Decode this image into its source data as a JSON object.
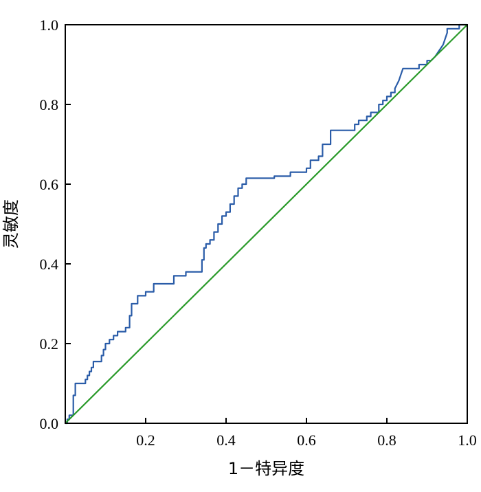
{
  "chart_data": {
    "type": "line",
    "title": "",
    "xlabel": "1－特异度",
    "ylabel": "灵敏度",
    "xlim": [
      0,
      1
    ],
    "ylim": [
      0,
      1
    ],
    "x_ticks": [
      {
        "value": 0.2,
        "label": "0.2"
      },
      {
        "value": 0.4,
        "label": "0.4"
      },
      {
        "value": 0.6,
        "label": "0.6"
      },
      {
        "value": 0.8,
        "label": "0.8"
      },
      {
        "value": 1.0,
        "label": "1.0"
      }
    ],
    "y_ticks": [
      {
        "value": 0.0,
        "label": "0.0"
      },
      {
        "value": 0.2,
        "label": "0.2"
      },
      {
        "value": 0.4,
        "label": "0.4"
      },
      {
        "value": 0.6,
        "label": "0.6"
      },
      {
        "value": 0.8,
        "label": "0.8"
      },
      {
        "value": 1.0,
        "label": "1.0"
      }
    ],
    "grid": false,
    "legend": "none",
    "series": [
      {
        "color": "#2a5ca8",
        "x": [
          0,
          0.005,
          0.005,
          0.01,
          0.01,
          0.02,
          0.02,
          0.025,
          0.025,
          0.03,
          0.03,
          0.05,
          0.05,
          0.055,
          0.055,
          0.06,
          0.06,
          0.065,
          0.065,
          0.07,
          0.07,
          0.09,
          0.09,
          0.095,
          0.095,
          0.1,
          0.1,
          0.11,
          0.11,
          0.12,
          0.12,
          0.13,
          0.13,
          0.15,
          0.15,
          0.16,
          0.16,
          0.165,
          0.165,
          0.18,
          0.18,
          0.185,
          0.185,
          0.2,
          0.2,
          0.22,
          0.22,
          0.23,
          0.23,
          0.27,
          0.27,
          0.3,
          0.3,
          0.34,
          0.34,
          0.345,
          0.345,
          0.35,
          0.35,
          0.36,
          0.36,
          0.37,
          0.37,
          0.38,
          0.38,
          0.39,
          0.39,
          0.4,
          0.4,
          0.41,
          0.41,
          0.42,
          0.42,
          0.43,
          0.43,
          0.44,
          0.44,
          0.45,
          0.45,
          0.46,
          0.52,
          0.52,
          0.56,
          0.56,
          0.6,
          0.6,
          0.61,
          0.61,
          0.63,
          0.63,
          0.64,
          0.64,
          0.66,
          0.66,
          0.72,
          0.72,
          0.73,
          0.73,
          0.75,
          0.75,
          0.76,
          0.76,
          0.78,
          0.78,
          0.79,
          0.79,
          0.8,
          0.8,
          0.81,
          0.81,
          0.82,
          0.82,
          0.83,
          0.84,
          0.86,
          0.88,
          0.88,
          0.9,
          0.9,
          0.91,
          0.92,
          0.94,
          0.95,
          0.95,
          0.98,
          0.98,
          1.0
        ],
        "y": [
          0,
          0,
          0.01,
          0.01,
          0.02,
          0.02,
          0.07,
          0.07,
          0.1,
          0.1,
          0.1,
          0.1,
          0.11,
          0.11,
          0.12,
          0.12,
          0.13,
          0.13,
          0.14,
          0.14,
          0.155,
          0.155,
          0.17,
          0.17,
          0.185,
          0.185,
          0.2,
          0.2,
          0.21,
          0.21,
          0.22,
          0.22,
          0.23,
          0.23,
          0.24,
          0.24,
          0.27,
          0.27,
          0.3,
          0.3,
          0.32,
          0.32,
          0.32,
          0.32,
          0.33,
          0.33,
          0.35,
          0.35,
          0.35,
          0.35,
          0.37,
          0.37,
          0.38,
          0.38,
          0.41,
          0.41,
          0.44,
          0.44,
          0.45,
          0.45,
          0.46,
          0.46,
          0.48,
          0.48,
          0.5,
          0.5,
          0.52,
          0.52,
          0.53,
          0.53,
          0.55,
          0.55,
          0.57,
          0.57,
          0.59,
          0.59,
          0.6,
          0.6,
          0.615,
          0.615,
          0.615,
          0.62,
          0.62,
          0.63,
          0.63,
          0.64,
          0.64,
          0.66,
          0.66,
          0.67,
          0.67,
          0.7,
          0.7,
          0.735,
          0.735,
          0.75,
          0.75,
          0.76,
          0.76,
          0.77,
          0.77,
          0.78,
          0.78,
          0.8,
          0.8,
          0.81,
          0.81,
          0.82,
          0.82,
          0.83,
          0.83,
          0.84,
          0.86,
          0.89,
          0.89,
          0.89,
          0.9,
          0.9,
          0.91,
          0.91,
          0.92,
          0.95,
          0.98,
          0.99,
          0.99,
          1.0,
          1.0
        ]
      },
      {
        "color": "#2a9a2a",
        "x": [
          0,
          1
        ],
        "y": [
          0,
          1
        ]
      }
    ]
  }
}
